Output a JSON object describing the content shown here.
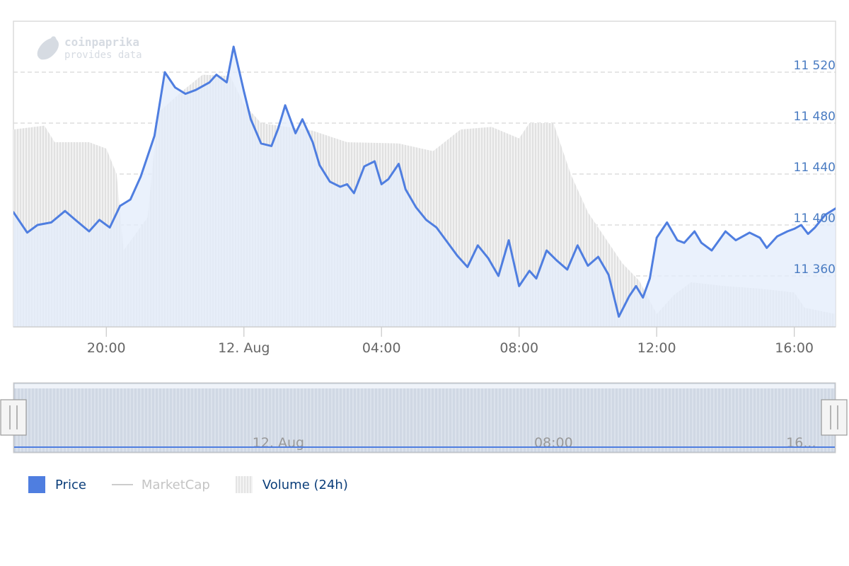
{
  "watermark": {
    "brand": "coinpaprika",
    "tagline": "provides data"
  },
  "colors": {
    "price_line": "#4f7ee0",
    "price_fill": "#e3ecfb",
    "volume_bar": "#dcdcdc",
    "grid": "#d7d7d7",
    "axis_label": "#4a7cc2"
  },
  "chart_data": {
    "type": "line",
    "title": "",
    "xlabel": "",
    "ylabel": "",
    "ylim": [
      11320,
      11560
    ],
    "yticks": [
      11360,
      11400,
      11440,
      11480,
      11520
    ],
    "ytick_labels": [
      "11 360",
      "11 400",
      "11 440",
      "11 480",
      "11 520"
    ],
    "x_range_hours": [
      -6.7,
      17.2
    ],
    "xticks": [
      {
        "label": "20:00",
        "hour": -4
      },
      {
        "label": "12. Aug",
        "hour": 0
      },
      {
        "label": "04:00",
        "hour": 4
      },
      {
        "label": "08:00",
        "hour": 8
      },
      {
        "label": "12:00",
        "hour": 12
      },
      {
        "label": "16:00",
        "hour": 16
      }
    ],
    "navigator_ticks": [
      {
        "label": "12. Aug",
        "hour": 1
      },
      {
        "label": "08:00",
        "hour": 9
      },
      {
        "label": "16...",
        "hour": 16.2
      }
    ],
    "series": [
      {
        "name": "Price",
        "x_hours": [
          -6.7,
          -6.3,
          -6.0,
          -5.6,
          -5.2,
          -4.9,
          -4.5,
          -4.2,
          -3.9,
          -3.6,
          -3.3,
          -3.0,
          -2.6,
          -2.3,
          -2.0,
          -1.7,
          -1.4,
          -1.0,
          -0.8,
          -0.5,
          -0.3,
          0.0,
          0.2,
          0.5,
          0.8,
          1.0,
          1.2,
          1.5,
          1.7,
          2.0,
          2.2,
          2.5,
          2.8,
          3.0,
          3.2,
          3.5,
          3.8,
          4.0,
          4.2,
          4.5,
          4.7,
          5.0,
          5.3,
          5.6,
          5.9,
          6.2,
          6.5,
          6.8,
          7.1,
          7.4,
          7.7,
          8.0,
          8.3,
          8.5,
          8.8,
          9.1,
          9.4,
          9.7,
          10.0,
          10.3,
          10.6,
          10.9,
          11.2,
          11.4,
          11.6,
          11.8,
          12.0,
          12.3,
          12.6,
          12.8,
          13.1,
          13.3,
          13.6,
          14.0,
          14.3,
          14.7,
          15.0,
          15.2,
          15.5,
          15.8,
          16.0,
          16.2,
          16.4,
          16.6,
          16.9,
          17.2
        ],
        "values": [
          11410,
          11394,
          11400,
          11402,
          11411,
          11404,
          11395,
          11404,
          11398,
          11415,
          11420,
          11438,
          11470,
          11520,
          11508,
          11503,
          11506,
          11512,
          11518,
          11512,
          11540,
          11505,
          11483,
          11464,
          11462,
          11476,
          11494,
          11472,
          11483,
          11465,
          11447,
          11434,
          11430,
          11432,
          11425,
          11446,
          11450,
          11432,
          11436,
          11448,
          11428,
          11414,
          11404,
          11398,
          11387,
          11376,
          11367,
          11384,
          11374,
          11360,
          11388,
          11352,
          11364,
          11358,
          11380,
          11372,
          11365,
          11384,
          11368,
          11375,
          11361,
          11328,
          11344,
          11352,
          11343,
          11358,
          11390,
          11402,
          11388,
          11386,
          11395,
          11386,
          11380,
          11395,
          11388,
          11394,
          11390,
          11382,
          11391,
          11395,
          11397,
          11400,
          11393,
          11398,
          11408,
          11413
        ]
      },
      {
        "name": "Volume (24h)",
        "x_hours": [
          -6.7,
          -5.8,
          -5.5,
          -4.5,
          -4.0,
          -3.7,
          -3.5,
          -2.8,
          -2.5,
          -1.8,
          -1.2,
          -0.4,
          0.0,
          0.5,
          1.0,
          2.0,
          3.0,
          4.5,
          5.5,
          6.3,
          7.2,
          8.0,
          8.3,
          9.0,
          9.5,
          10.0,
          11.0,
          11.5,
          12.0,
          12.5,
          13.0,
          14.0,
          15.0,
          16.0,
          16.3,
          17.2
        ],
        "values": [
          11475,
          11478,
          11465,
          11465,
          11460,
          11440,
          11380,
          11406,
          11488,
          11505,
          11518,
          11517,
          11495,
          11480,
          11478,
          11474,
          11465,
          11464,
          11458,
          11475,
          11477,
          11468,
          11480,
          11480,
          11440,
          11410,
          11370,
          11356,
          11330,
          11345,
          11355,
          11352,
          11350,
          11347,
          11335,
          11330
        ]
      },
      {
        "name": "MarketCap",
        "values": []
      }
    ],
    "grid": true,
    "legend_position": "bottom-left"
  },
  "legend": {
    "items": [
      {
        "label": "Price",
        "enabled": true
      },
      {
        "label": "MarketCap",
        "enabled": false
      },
      {
        "label": "Volume (24h)",
        "enabled": true
      }
    ]
  }
}
